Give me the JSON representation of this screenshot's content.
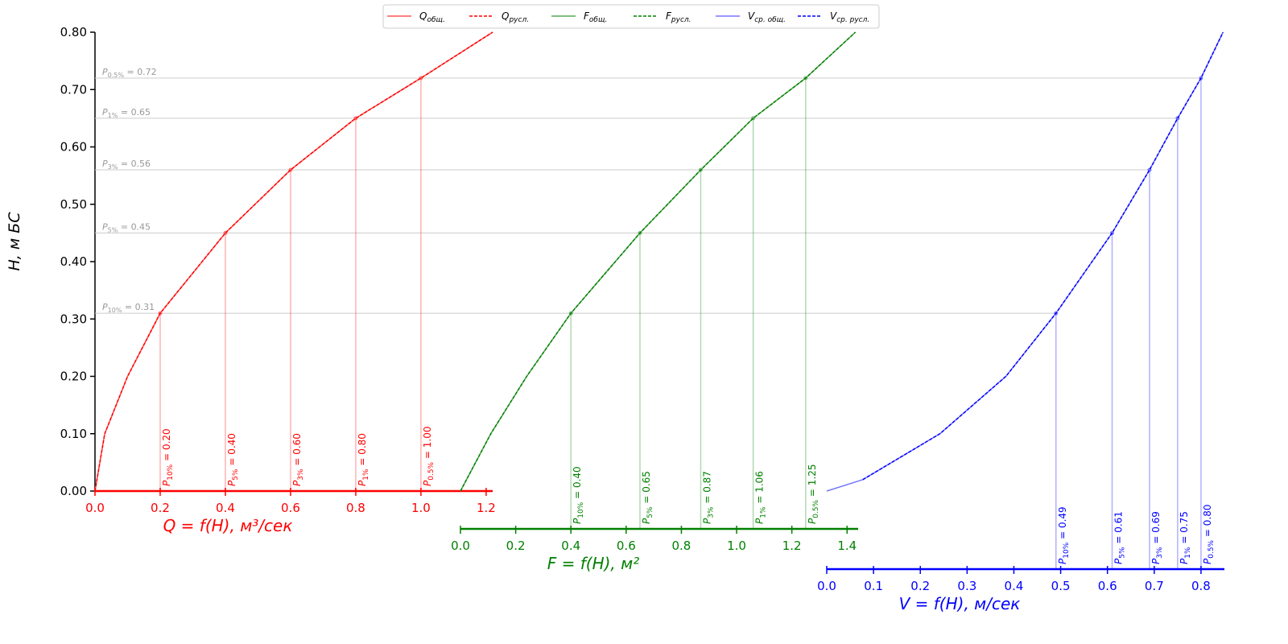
{
  "chart_data": {
    "type": "line",
    "ylabel": "H, м БС",
    "ylim": [
      0,
      0.8
    ],
    "yticks": [
      {
        "value": 0,
        "label": "0.00"
      },
      {
        "value": 0.1,
        "label": "0.10"
      },
      {
        "value": 0.2,
        "label": "0.20"
      },
      {
        "value": 0.3,
        "label": "0.30"
      },
      {
        "value": 0.4,
        "label": "0.40"
      },
      {
        "value": 0.5,
        "label": "0.50"
      },
      {
        "value": 0.6,
        "label": "0.60"
      },
      {
        "value": 0.7,
        "label": "0.70"
      },
      {
        "value": 0.8,
        "label": "0.80"
      }
    ],
    "levels": {
      "symbol": "P",
      "equals": " = ",
      "names": [
        "10%",
        "5%",
        "3%",
        "1%",
        "0.5%"
      ],
      "values": [
        0.31,
        0.45,
        0.56,
        0.65,
        0.72
      ]
    },
    "panels": [
      {
        "xlabel": "Q = f(H), м³/сек",
        "color": "#ff0000",
        "xlim": [
          0,
          1.22
        ],
        "xticks": [
          {
            "value": 0,
            "label": "0.0"
          },
          0.2,
          0.4,
          0.6,
          0.8,
          {
            "value": 1,
            "label": "1.0"
          },
          1.2
        ],
        "points": [
          0.2,
          0.4,
          0.6,
          0.8,
          1.0
        ],
        "value_labels": [
          "0.20",
          "0.40",
          "0.60",
          "0.80",
          "1.00"
        ],
        "series": [
          {
            "name": "Q",
            "subscript": "общ.",
            "color": "#ff5555",
            "linestyle": "solid",
            "x": [
              0,
              0.03,
              0.1,
              0.2,
              0.4,
              0.6,
              0.8,
              1.0,
              1.22
            ],
            "y": [
              0,
              0.1,
              0.2,
              0.31,
              0.45,
              0.56,
              0.65,
              0.72,
              0.8
            ]
          },
          {
            "name": "Q",
            "subscript": "русл.",
            "color": "#ff0000",
            "linestyle": "dashed",
            "x": [
              0,
              0.03,
              0.1,
              0.2,
              0.4,
              0.6,
              0.8,
              1.0,
              1.22
            ],
            "y": [
              0,
              0.1,
              0.2,
              0.31,
              0.45,
              0.56,
              0.65,
              0.72,
              0.8
            ]
          }
        ]
      },
      {
        "xlabel": "F = f(H), м²",
        "color": "#008000",
        "xlim": [
          0,
          1.44
        ],
        "xticks": [
          {
            "value": 0,
            "label": "0.0"
          },
          0.2,
          0.4,
          0.6,
          0.8,
          {
            "value": 1,
            "label": "1.0"
          },
          1.2,
          1.4
        ],
        "points": [
          0.4,
          0.65,
          0.87,
          1.06,
          1.25
        ],
        "value_labels": [
          "0.40",
          "0.65",
          "0.87",
          "1.06",
          "1.25"
        ],
        "series": [
          {
            "name": "F",
            "subscript": "общ.",
            "color": "#55aa55",
            "linestyle": "solid",
            "x": [
              0,
              0.11,
              0.24,
              0.4,
              0.65,
              0.87,
              1.06,
              1.25,
              1.43
            ],
            "y": [
              0,
              0.1,
              0.2,
              0.31,
              0.45,
              0.56,
              0.65,
              0.72,
              0.8
            ]
          },
          {
            "name": "F",
            "subscript": "русл.",
            "color": "#008000",
            "linestyle": "dashed",
            "x": [
              0,
              0.11,
              0.24,
              0.4,
              0.65,
              0.87,
              1.06,
              1.25,
              1.43
            ],
            "y": [
              0,
              0.1,
              0.2,
              0.31,
              0.45,
              0.56,
              0.65,
              0.72,
              0.8
            ]
          }
        ]
      },
      {
        "xlabel": "V = f(H), м/сек",
        "color": "#0000ff",
        "xlim": [
          0,
          0.85
        ],
        "xticks": [
          {
            "value": 0,
            "label": "0.0"
          },
          0.1,
          0.2,
          0.3,
          0.4,
          0.5,
          0.6,
          0.7,
          0.8
        ],
        "points": [
          0.49,
          0.61,
          0.69,
          0.75,
          0.8
        ],
        "value_labels": [
          "0.49",
          "0.61",
          "0.69",
          "0.75",
          "0.80"
        ],
        "series": [
          {
            "name": "V",
            "subscript": "ср. общ.",
            "color": "#7777ff",
            "linestyle": "solid",
            "x": [
              0,
              0.077,
              0.242,
              0.383,
              0.49,
              0.61,
              0.69,
              0.75,
              0.8,
              0.847
            ],
            "y": [
              0,
              0.02,
              0.1,
              0.2,
              0.31,
              0.45,
              0.56,
              0.65,
              0.72,
              0.8
            ]
          },
          {
            "name": "V",
            "subscript": "ср. русл.",
            "color": "#0000ff",
            "linestyle": "dashed",
            "x": [
              null,
              0.077,
              0.242,
              0.383,
              0.49,
              0.61,
              0.69,
              0.75,
              0.8,
              0.847
            ],
            "y": [
              null,
              0.02,
              0.1,
              0.2,
              0.31,
              0.45,
              0.56,
              0.65,
              0.72,
              0.8
            ]
          }
        ]
      }
    ]
  }
}
